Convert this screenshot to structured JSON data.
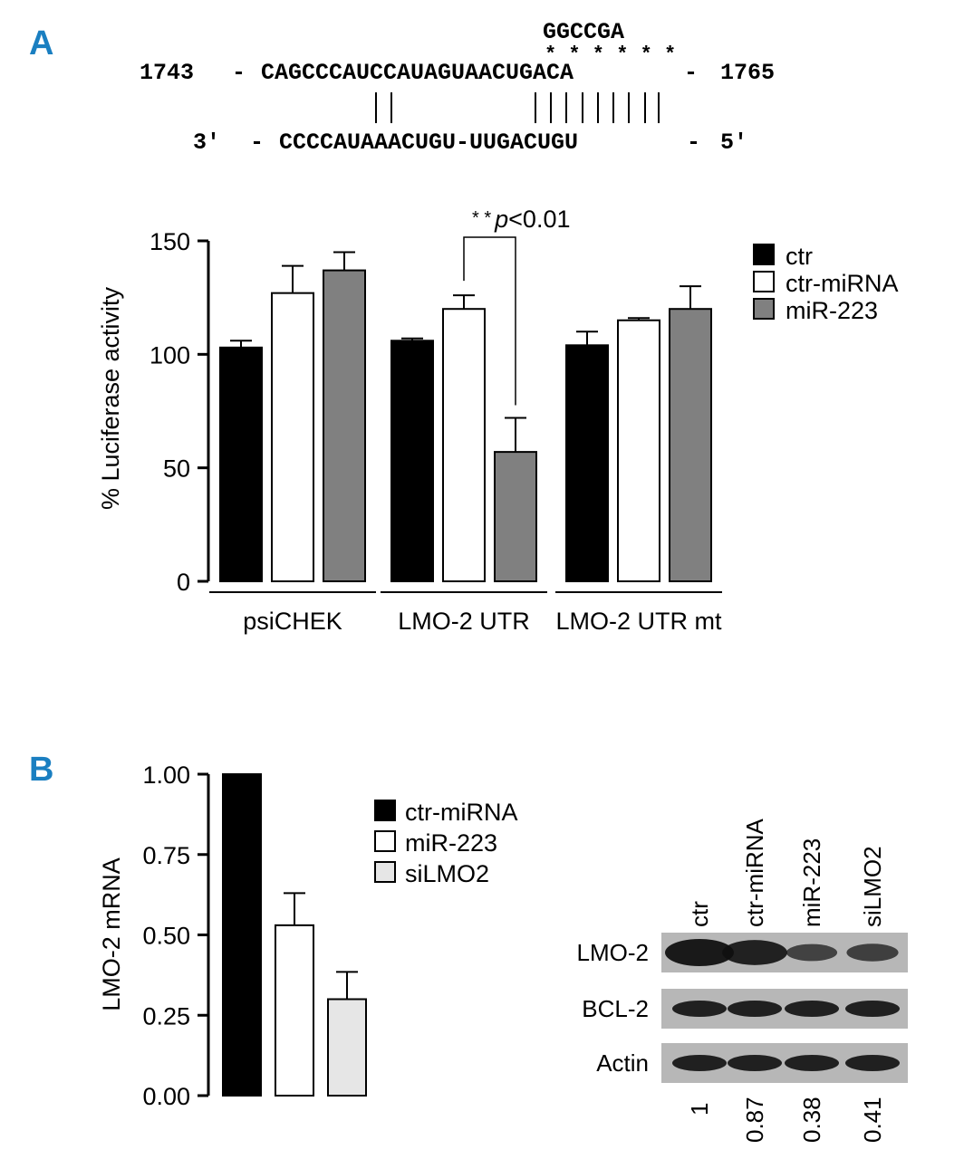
{
  "colors": {
    "panel_label": "#1a7fc1",
    "black_bar": "#000000",
    "white_bar": "#ffffff",
    "gray_bar": "#808080",
    "light_bar": "#e6e6e6"
  },
  "panel_a": {
    "label": "A",
    "mutation": "GGCCGA",
    "stars": "* * * * * *",
    "start_pos": "1743",
    "end_pos": "1765",
    "target_seq": "CAGCCCAUCCAUAGUAACUGACA",
    "mirna_left": "3′",
    "mirna_seq": "CCCCAUAAACUGU-UUGACUGU",
    "mirna_right": "5′",
    "dash": "-"
  },
  "panel_b": {
    "label": "B"
  },
  "chart_data": [
    {
      "type": "bar",
      "ylabel": "% Luciferase activity",
      "ylim": [
        0,
        150
      ],
      "yticks": [
        "0",
        "50",
        "100",
        "150"
      ],
      "groups": [
        "psiCHEK",
        "LMO-2 UTR",
        "LMO-2 UTR mt"
      ],
      "series": [
        {
          "name": "ctr",
          "values": [
            103,
            106,
            104
          ],
          "errors": [
            3,
            1,
            6
          ]
        },
        {
          "name": "ctr-miRNA",
          "values": [
            127,
            120,
            115
          ],
          "errors": [
            12,
            6,
            1
          ]
        },
        {
          "name": "miR-223",
          "values": [
            137,
            57,
            120
          ],
          "errors": [
            8,
            15,
            10
          ]
        }
      ],
      "annotation": {
        "stars": "* *",
        "p": "p",
        "rest": "<0.01"
      }
    },
    {
      "type": "bar",
      "ylabel": "LMO-2 mRNA",
      "ylim": [
        0,
        1.0
      ],
      "yticks": [
        "0.00",
        "0.25",
        "0.50",
        "0.75",
        "1.00"
      ],
      "categories": [
        "ctr-miRNA",
        "miR-223",
        "siLMO2"
      ],
      "values": [
        1.0,
        0.53,
        0.3
      ],
      "errors": [
        0,
        0.1,
        0.085
      ]
    }
  ],
  "blot": {
    "lanes": [
      "ctr",
      "ctr-miRNA",
      "miR-223",
      "siLMO2"
    ],
    "rows": [
      "LMO-2",
      "BCL-2",
      "Actin"
    ],
    "quant": [
      "1",
      "0.87",
      "0.38",
      "0.41"
    ],
    "lmo2_intensity": [
      1.0,
      0.87,
      0.38,
      0.41
    ]
  }
}
